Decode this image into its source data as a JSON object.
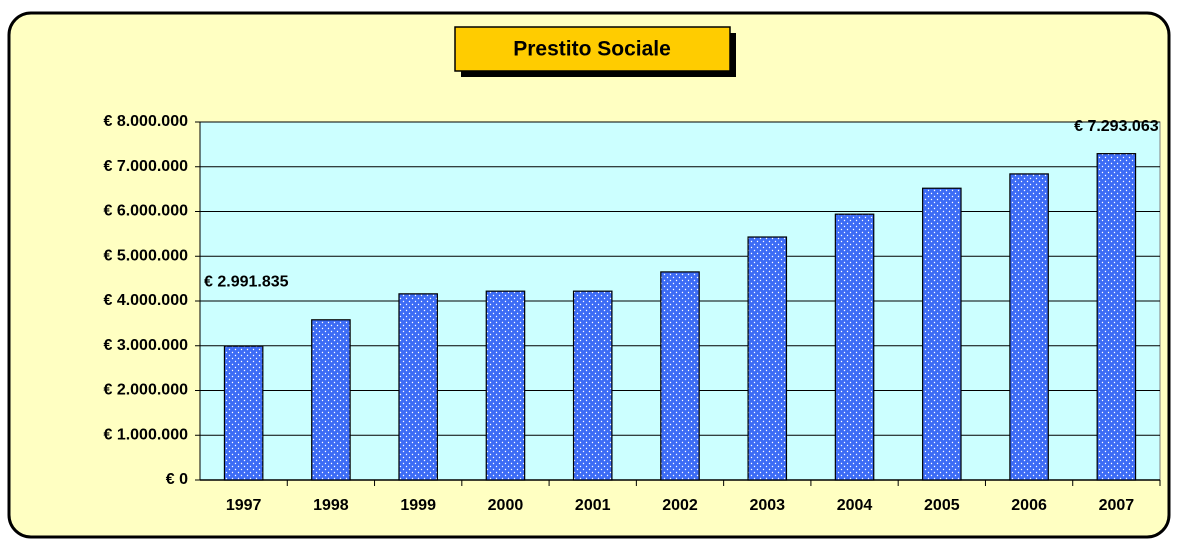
{
  "chart_data": {
    "type": "bar",
    "title": "Prestito Sociale",
    "categories": [
      "1997",
      "1998",
      "1999",
      "2000",
      "2001",
      "2002",
      "2003",
      "2004",
      "2005",
      "2006",
      "2007"
    ],
    "values": [
      2991835,
      3580000,
      4160000,
      4220000,
      4220000,
      4650000,
      5430000,
      5940000,
      6520000,
      6840000,
      7293063
    ],
    "value_labels": [
      "€ 2.991.835",
      null,
      null,
      null,
      null,
      null,
      null,
      null,
      null,
      null,
      "€ 7.293.063"
    ],
    "color": "#3d6cf5",
    "ylim": [
      0,
      8000000
    ],
    "yticks": [
      {
        "value": 0,
        "label": "€ 0"
      },
      {
        "value": 1000000,
        "label": "€ 1.000.000"
      },
      {
        "value": 2000000,
        "label": "€ 2.000.000"
      },
      {
        "value": 3000000,
        "label": "€ 3.000.000"
      },
      {
        "value": 4000000,
        "label": "€ 4.000.000"
      },
      {
        "value": 5000000,
        "label": "€ 5.000.000"
      },
      {
        "value": 6000000,
        "label": "€ 6.000.000"
      },
      {
        "value": 7000000,
        "label": "€ 7.000.000"
      },
      {
        "value": 8000000,
        "label": "€ 8.000.000"
      }
    ],
    "grid": true
  }
}
